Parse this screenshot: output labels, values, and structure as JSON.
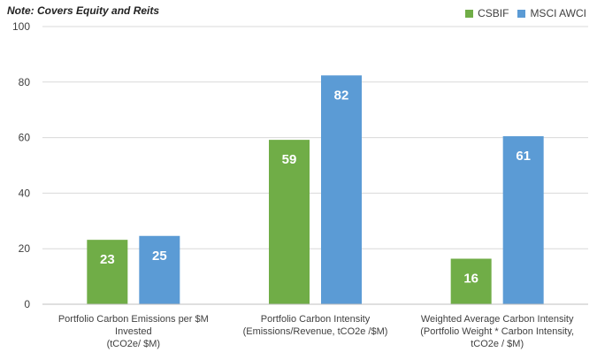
{
  "note": "Note: Covers Equity and Reits",
  "chart_data": {
    "type": "bar",
    "categories": [
      [
        "Portfolio Carbon Emissions per $M",
        "Invested",
        "(tCO2e/ $M)"
      ],
      [
        "Portfolio Carbon Intensity",
        "(Emissions/Revenue, tCO2e /$M)"
      ],
      [
        "Weighted Average Carbon Intensity",
        "(Portfolio Weight * Carbon Intensity,",
        "tCO2e / $M)"
      ]
    ],
    "series": [
      {
        "name": "CSBIF",
        "values": [
          23.2,
          59.2,
          16.4
        ],
        "labels": [
          "23",
          "59",
          "16"
        ],
        "color": "#70ad47"
      },
      {
        "name": "MSCI AWCI",
        "values": [
          24.6,
          82.4,
          60.5
        ],
        "labels": [
          "25",
          "82",
          "61"
        ],
        "color": "#5b9bd5"
      }
    ],
    "ylim": [
      0,
      100
    ],
    "yticks": [
      "0",
      "20",
      "40",
      "60",
      "80",
      "100"
    ],
    "grid": true,
    "legend": "top-right",
    "title": "",
    "xlabel": "",
    "ylabel": ""
  }
}
